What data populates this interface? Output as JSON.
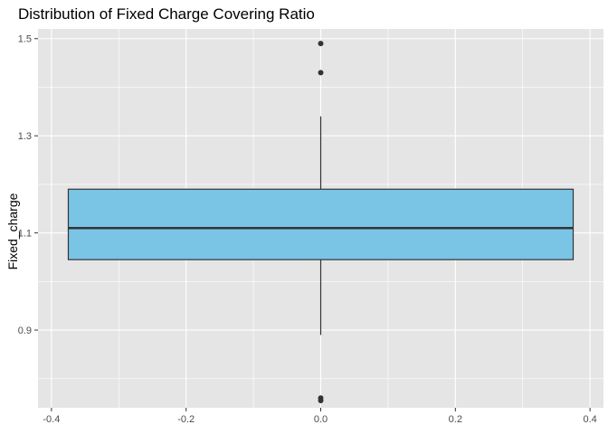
{
  "chart_data": {
    "type": "boxplot",
    "title": "Distribution of Fixed Charge Covering Ratio",
    "xlabel": "",
    "ylabel": "Fixed_charge",
    "xlim": [
      -0.42,
      0.42
    ],
    "ylim": [
      0.74,
      1.52
    ],
    "x_ticks": [
      -0.4,
      -0.2,
      0.0,
      0.2,
      0.4
    ],
    "x_tick_labels": [
      "-0.4",
      "-0.2",
      "0.0",
      "0.2",
      "0.4"
    ],
    "y_ticks": [
      0.9,
      1.1,
      1.3,
      1.5
    ],
    "y_tick_labels": [
      "0.9",
      "1.1",
      "1.3",
      "1.5"
    ],
    "grid": true,
    "box": {
      "x_center": 0.0,
      "x_min": -0.375,
      "x_max": 0.375,
      "q1": 1.045,
      "median": 1.11,
      "q3": 1.19,
      "whisker_low": 0.89,
      "whisker_high": 1.34,
      "outliers": [
        1.49,
        1.43,
        0.76,
        0.755
      ]
    },
    "colors": {
      "panel": "#e5e5e5",
      "grid": "#ffffff",
      "box_fill": "#7ac4e6",
      "box_stroke": "#333333"
    }
  }
}
